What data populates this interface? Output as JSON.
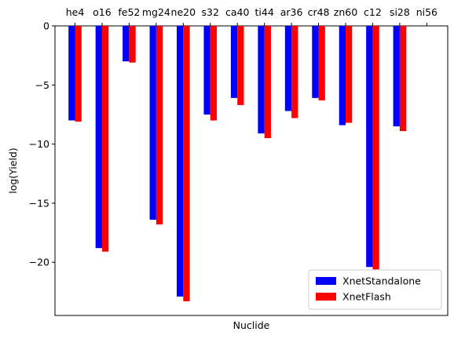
{
  "chart_data": {
    "type": "bar",
    "categories": [
      "he4",
      "o16",
      "fe52",
      "mg24",
      "ne20",
      "s32",
      "ca40",
      "ti44",
      "ar36",
      "cr48",
      "zn60",
      "c12",
      "si28",
      "ni56"
    ],
    "series": [
      {
        "name": "XnetStandalone",
        "color": "#0000ff",
        "values": [
          -8.0,
          -18.8,
          -3.0,
          -16.4,
          -22.9,
          -7.5,
          -6.1,
          -9.1,
          -7.2,
          -6.1,
          -8.4,
          -20.4,
          -8.5,
          0
        ]
      },
      {
        "name": "XnetFlash",
        "color": "#ff0000",
        "values": [
          -8.1,
          -19.1,
          -3.1,
          -16.8,
          -23.3,
          -8.0,
          -6.7,
          -9.5,
          -7.8,
          -6.3,
          -8.2,
          -20.6,
          -8.9,
          0
        ]
      }
    ],
    "xlabel": "Nuclide",
    "ylabel": "log(Yield)",
    "ylim": [
      -24.5,
      0
    ],
    "yticks": [
      0,
      -5,
      -10,
      -15,
      -20
    ],
    "ytick_labels": [
      "0",
      "−5",
      "−10",
      "−15",
      "−20"
    ],
    "x_tick_position": "top",
    "grid": false,
    "legend_placement": "bottom-right"
  }
}
